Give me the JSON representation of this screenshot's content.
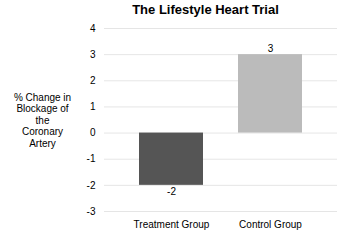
{
  "chart_data": {
    "type": "bar",
    "title": "The Lifestyle Heart Trial",
    "categories": [
      "Treatment Group",
      "Control Group"
    ],
    "values": [
      -2,
      3
    ],
    "colors": [
      "#555555",
      "#bbbbbb"
    ],
    "ylabel": "% Change in\nBlockage of\nthe\nCoronary\nArtery",
    "ylim": [
      -3,
      4
    ],
    "yticks": [
      -3,
      -2,
      -1,
      0,
      1,
      2,
      3,
      4
    ],
    "grid": true,
    "data_labels": true
  }
}
